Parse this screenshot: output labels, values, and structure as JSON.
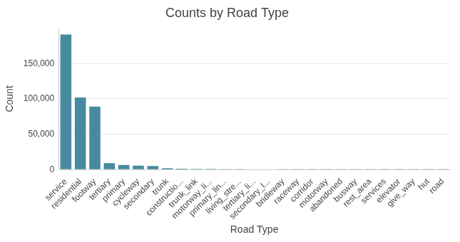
{
  "chart_data": {
    "type": "bar",
    "title": "Counts by Road Type",
    "x_label": "Road Type",
    "y_label": "Count",
    "categories": [
      "service",
      "residential",
      "footway",
      "tertiary",
      "primary",
      "cycleway",
      "secondary",
      "trunk",
      "constructio...",
      "trunk_link",
      "motorway_li...",
      "primary_lin...",
      "living_stre...",
      "tertiary_li...",
      "secondary_l...",
      "bridleway",
      "raceway",
      "corridor",
      "motorway",
      "abandoned",
      "busway",
      "rest_area",
      "services",
      "elevator",
      "give_way",
      "hut",
      "road"
    ],
    "values": [
      191000,
      102000,
      89000,
      9000,
      6500,
      5500,
      5000,
      2000,
      1200,
      1000,
      900,
      800,
      700,
      500,
      400,
      300,
      200,
      150,
      120,
      100,
      80,
      60,
      50,
      40,
      30,
      20,
      10
    ],
    "color": "#478a9f",
    "ylim": [
      0,
      200000
    ],
    "yticks": [
      0,
      {
        "value": 50000,
        "label": "50,000"
      },
      {
        "value": 100000,
        "label": "100,000"
      },
      {
        "value": 150000,
        "label": "150,000"
      }
    ],
    "grid": true
  }
}
